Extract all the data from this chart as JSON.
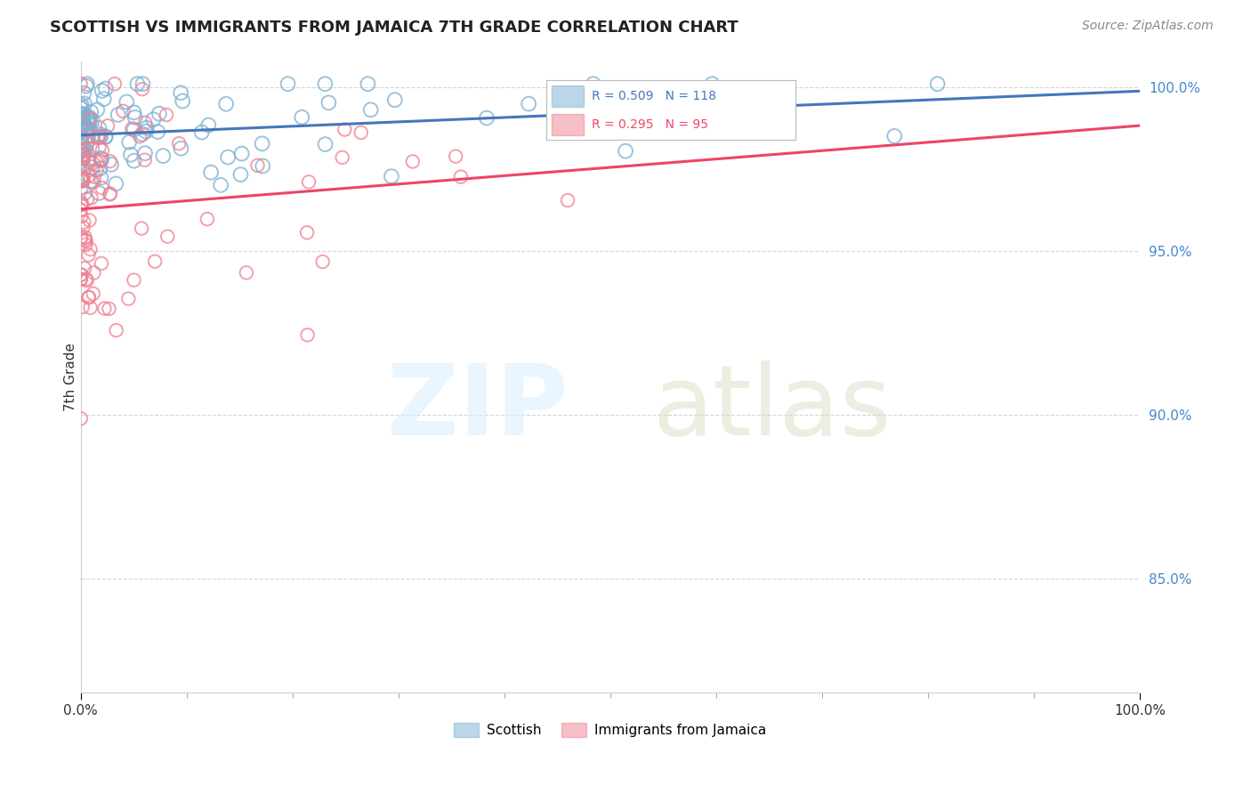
{
  "title": "SCOTTISH VS IMMIGRANTS FROM JAMAICA 7TH GRADE CORRELATION CHART",
  "source": "Source: ZipAtlas.com",
  "ylabel": "7th Grade",
  "xlim": [
    0.0,
    1.0
  ],
  "ylim": [
    0.815,
    1.008
  ],
  "yticks": [
    0.85,
    0.9,
    0.95,
    1.0
  ],
  "ytick_labels": [
    "85.0%",
    "90.0%",
    "95.0%",
    "100.0%"
  ],
  "xticks": [
    0.0,
    1.0
  ],
  "xtick_labels": [
    "0.0%",
    "100.0%"
  ],
  "blue_R": 0.509,
  "blue_N": 118,
  "pink_R": 0.295,
  "pink_N": 95,
  "blue_color": "#7BAFD4",
  "pink_color": "#F08090",
  "blue_line_color": "#4477BB",
  "pink_line_color": "#EE4466",
  "background_color": "#FFFFFF",
  "grid_color": "#BBBBBB",
  "legend_labels": [
    "Scottish",
    "Immigrants from Jamaica"
  ],
  "blue_seed": 42,
  "pink_seed": 123
}
